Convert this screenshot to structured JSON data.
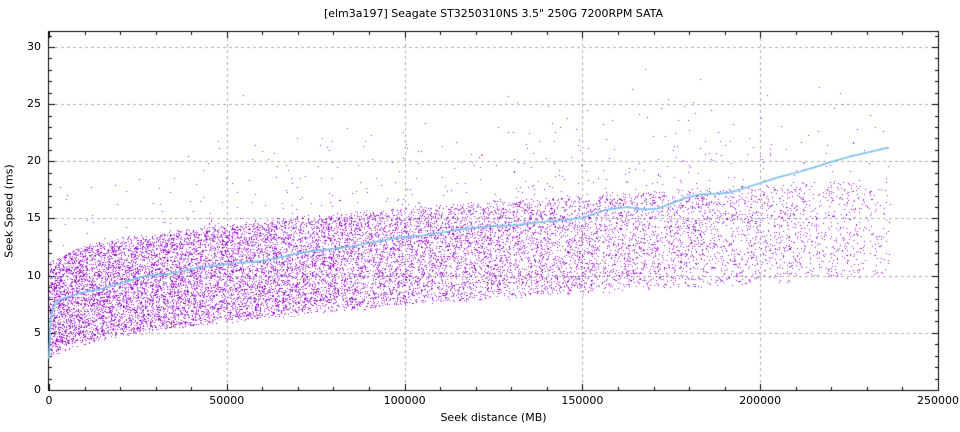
{
  "chart_data": {
    "type": "scatter",
    "title": "[elm3a197] Seagate ST3250310NS 3.5\" 250G 7200RPM SATA",
    "xlabel": "Seek distance (MB)",
    "ylabel": "Seek Speed (ms)",
    "xlim": [
      0,
      250000
    ],
    "ylim": [
      0,
      31.31
    ],
    "x_ticks": [
      0,
      50000,
      100000,
      150000,
      200000,
      250000
    ],
    "y_ticks": [
      0,
      5,
      10,
      15,
      20,
      25,
      30
    ],
    "x_minor_step": 10000,
    "y_minor_step": 1,
    "grid": true,
    "legend": "none",
    "colors": {
      "points": "#9400d3",
      "trend_line": "#84c4ea",
      "grid": "#b0b0b0",
      "axis": "#000000",
      "background": "#ffffff",
      "text": "#000000"
    },
    "series": [
      {
        "name": "seek-samples",
        "style": "dots",
        "marker_px": 1,
        "scatter_model": {
          "seed": 20110417,
          "n_points": 16000,
          "d_max_mb": 236500,
          "triangular_fraction": 0.82,
          "min_envelope_ms": {
            "a": 2.6,
            "b_sqrt": 0.0155
          },
          "rotational_band_ms": 8.33,
          "outlier_probability": {
            "base": 0.012,
            "gain": 0.085,
            "exponent": 1.3
          },
          "second_outlier_fraction": 0.12,
          "jitter_ms": 0.5,
          "t_min_ms": 2.6,
          "t_max_ms": 29.7
        }
      },
      {
        "name": "running-average",
        "style": "line",
        "points": [
          [
            0,
            2.8
          ],
          [
            500,
            6.2
          ],
          [
            1200,
            7.3
          ],
          [
            3000,
            7.9
          ],
          [
            6000,
            8.2
          ],
          [
            10000,
            8.55
          ],
          [
            14000,
            8.8
          ],
          [
            18000,
            9.1
          ],
          [
            22000,
            9.5
          ],
          [
            26000,
            9.9
          ],
          [
            30000,
            10.1
          ],
          [
            34000,
            10.15
          ],
          [
            38000,
            10.45
          ],
          [
            42000,
            10.7
          ],
          [
            46000,
            10.85
          ],
          [
            50000,
            11.0
          ],
          [
            55000,
            11.15
          ],
          [
            60000,
            11.3
          ],
          [
            65000,
            11.6
          ],
          [
            70000,
            11.95
          ],
          [
            75000,
            12.2
          ],
          [
            80000,
            12.35
          ],
          [
            85000,
            12.55
          ],
          [
            90000,
            12.85
          ],
          [
            95000,
            13.15
          ],
          [
            100000,
            13.4
          ],
          [
            105000,
            13.5
          ],
          [
            110000,
            13.75
          ],
          [
            115000,
            14.0
          ],
          [
            120000,
            14.2
          ],
          [
            125000,
            14.35
          ],
          [
            130000,
            14.4
          ],
          [
            135000,
            14.55
          ],
          [
            140000,
            14.75
          ],
          [
            145000,
            14.85
          ],
          [
            150000,
            15.05
          ],
          [
            155000,
            15.6
          ],
          [
            158000,
            15.85
          ],
          [
            163000,
            16.0
          ],
          [
            167000,
            15.8
          ],
          [
            171000,
            15.85
          ],
          [
            175000,
            16.3
          ],
          [
            179000,
            16.8
          ],
          [
            183000,
            17.1
          ],
          [
            187000,
            17.15
          ],
          [
            191000,
            17.25
          ],
          [
            195000,
            17.6
          ],
          [
            200000,
            18.1
          ],
          [
            205000,
            18.6
          ],
          [
            210000,
            19.0
          ],
          [
            215000,
            19.45
          ],
          [
            220000,
            19.95
          ],
          [
            225000,
            20.4
          ],
          [
            230000,
            20.75
          ],
          [
            236000,
            21.2
          ]
        ]
      }
    ]
  }
}
